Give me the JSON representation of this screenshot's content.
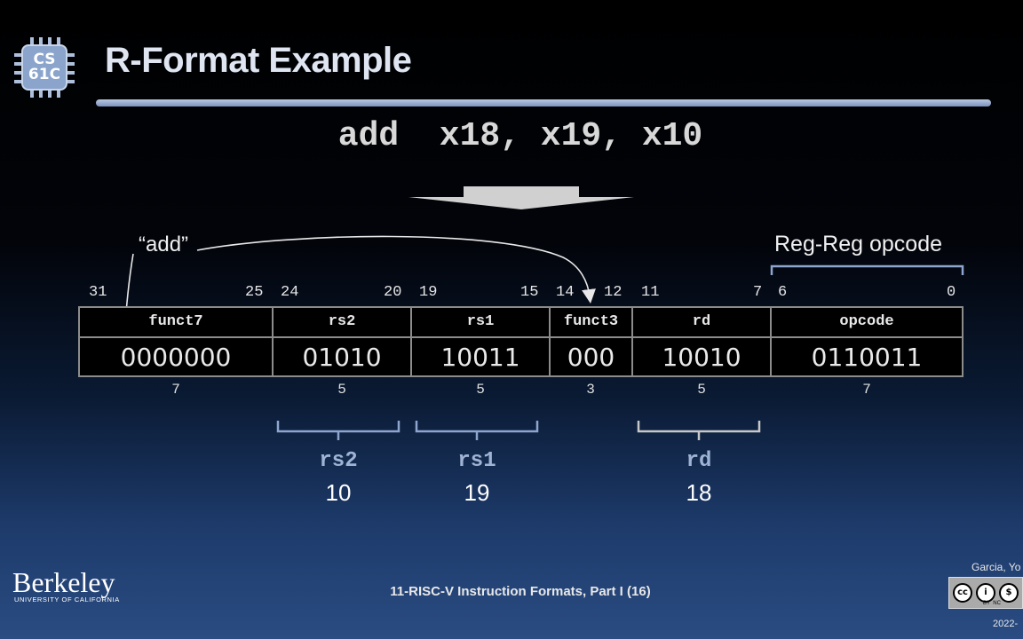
{
  "logo": {
    "line1": "CS",
    "line2": "61C"
  },
  "title": "R-Format Example",
  "instruction": "add  x18, x19, x10",
  "labels": {
    "add_quote": "“add”",
    "regreg_opcode": "Reg-Reg opcode"
  },
  "bit_numbers": [
    "31",
    "25",
    "24",
    "20",
    "19",
    "15",
    "14",
    "12",
    "11",
    "7",
    "6",
    "0"
  ],
  "fields": [
    {
      "name": "funct7",
      "value": "0000000",
      "width": "7"
    },
    {
      "name": "rs2",
      "value": "01010",
      "width": "5"
    },
    {
      "name": "rs1",
      "value": "10011",
      "width": "5"
    },
    {
      "name": "funct3",
      "value": "000",
      "width": "3"
    },
    {
      "name": "rd",
      "value": "10010",
      "width": "5"
    },
    {
      "name": "opcode",
      "value": "0110011",
      "width": "7"
    }
  ],
  "registers": [
    {
      "name": "rs2",
      "number": "10"
    },
    {
      "name": "rs1",
      "number": "19"
    },
    {
      "name": "rd",
      "number": "18"
    }
  ],
  "footer": {
    "institution": "Berkeley",
    "institution_sub": "UNIVERSITY OF CALIFORNIA",
    "lecture": "11-RISC-V Instruction Formats, Part I (16)",
    "author": "Garcia, Yo",
    "year": "2022-",
    "license_small": "BY  NC"
  }
}
